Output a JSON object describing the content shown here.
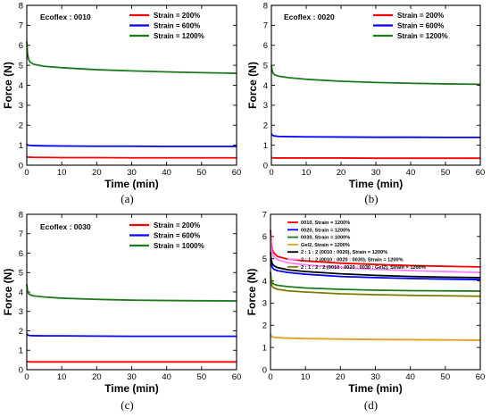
{
  "chart_data": [
    {
      "type": "line",
      "caption": "(a)",
      "title": "Ecoflex : 0010",
      "xlabel": "Time (min)",
      "ylabel": "Force (N)",
      "xlim": [
        0,
        60
      ],
      "ylim": [
        0,
        8
      ],
      "xticks": [
        0,
        10,
        20,
        30,
        40,
        50,
        60
      ],
      "yticks": [
        0,
        1,
        2,
        3,
        4,
        5,
        6,
        7,
        8
      ],
      "legend_position": "top-right",
      "series": [
        {
          "name": "Strain = 200%",
          "color": "#ff0000",
          "x": [
            0,
            0.2,
            0.5,
            1,
            2,
            5,
            10,
            20,
            30,
            40,
            50,
            60
          ],
          "y": [
            0.42,
            0.41,
            0.4,
            0.4,
            0.39,
            0.39,
            0.38,
            0.38,
            0.37,
            0.37,
            0.37,
            0.37
          ]
        },
        {
          "name": "Strain = 600%",
          "color": "#0000ff",
          "x": [
            0,
            0.2,
            0.5,
            1,
            2,
            5,
            10,
            20,
            30,
            40,
            50,
            60
          ],
          "y": [
            1.05,
            1.02,
            1.0,
            0.99,
            0.98,
            0.97,
            0.96,
            0.95,
            0.95,
            0.94,
            0.94,
            0.94
          ]
        },
        {
          "name": "Strain = 1200%",
          "color": "#1a7a1a",
          "x": [
            0,
            0.2,
            0.5,
            1,
            2,
            5,
            10,
            20,
            30,
            40,
            50,
            60
          ],
          "y": [
            6.2,
            5.6,
            5.3,
            5.15,
            5.05,
            4.95,
            4.88,
            4.78,
            4.72,
            4.67,
            4.63,
            4.6
          ]
        }
      ]
    },
    {
      "type": "line",
      "caption": "(b)",
      "title": "Ecoflex : 0020",
      "xlabel": "Time (min)",
      "ylabel": "Force (N)",
      "xlim": [
        0,
        60
      ],
      "ylim": [
        0,
        8
      ],
      "xticks": [
        0,
        10,
        20,
        30,
        40,
        50,
        60
      ],
      "yticks": [
        0,
        1,
        2,
        3,
        4,
        5,
        6,
        7,
        8
      ],
      "legend_position": "top-right",
      "series": [
        {
          "name": "Strain = 200%",
          "color": "#ff0000",
          "x": [
            0,
            0.2,
            0.5,
            1,
            2,
            5,
            10,
            20,
            30,
            40,
            50,
            60
          ],
          "y": [
            0.38,
            0.37,
            0.37,
            0.36,
            0.36,
            0.36,
            0.36,
            0.36,
            0.35,
            0.35,
            0.35,
            0.35
          ]
        },
        {
          "name": "Strain = 600%",
          "color": "#0000ff",
          "x": [
            0,
            0.2,
            0.5,
            1,
            2,
            5,
            10,
            20,
            30,
            40,
            50,
            60
          ],
          "y": [
            1.58,
            1.52,
            1.48,
            1.46,
            1.44,
            1.43,
            1.42,
            1.41,
            1.4,
            1.4,
            1.39,
            1.39
          ]
        },
        {
          "name": "Strain = 1200%",
          "color": "#1a7a1a",
          "x": [
            0,
            0.2,
            0.5,
            1,
            2,
            5,
            10,
            20,
            30,
            40,
            50,
            60
          ],
          "y": [
            5.0,
            4.75,
            4.6,
            4.52,
            4.46,
            4.38,
            4.3,
            4.2,
            4.14,
            4.1,
            4.07,
            4.05
          ]
        }
      ]
    },
    {
      "type": "line",
      "caption": "(c)",
      "title": "Ecoflex : 0030",
      "xlabel": "Time (min)",
      "ylabel": "Force (N)",
      "xlim": [
        0,
        60
      ],
      "ylim": [
        0,
        8
      ],
      "xticks": [
        0,
        10,
        20,
        30,
        40,
        50,
        60
      ],
      "yticks": [
        0,
        1,
        2,
        3,
        4,
        5,
        6,
        7,
        8
      ],
      "legend_position": "top-right",
      "series": [
        {
          "name": "Strain = 200%",
          "color": "#ff0000",
          "x": [
            0,
            0.2,
            0.5,
            1,
            2,
            5,
            10,
            20,
            30,
            40,
            50,
            60
          ],
          "y": [
            0.42,
            0.41,
            0.41,
            0.4,
            0.4,
            0.4,
            0.4,
            0.4,
            0.4,
            0.4,
            0.4,
            0.4
          ]
        },
        {
          "name": "Strain = 600%",
          "color": "#0000ff",
          "x": [
            0,
            0.2,
            0.5,
            1,
            2,
            5,
            10,
            20,
            30,
            40,
            50,
            60
          ],
          "y": [
            1.85,
            1.8,
            1.77,
            1.76,
            1.75,
            1.74,
            1.74,
            1.73,
            1.72,
            1.72,
            1.72,
            1.72
          ]
        },
        {
          "name": "Strain = 1000%",
          "color": "#1a7a1a",
          "x": [
            0,
            0.2,
            0.5,
            1,
            2,
            5,
            10,
            20,
            30,
            40,
            50,
            60
          ],
          "y": [
            4.4,
            4.05,
            3.92,
            3.85,
            3.8,
            3.74,
            3.68,
            3.62,
            3.58,
            3.56,
            3.55,
            3.54
          ]
        }
      ]
    },
    {
      "type": "line",
      "caption": "(d)",
      "title": "",
      "xlabel": "Time (min)",
      "ylabel": "Force (N)",
      "xlim": [
        0,
        60
      ],
      "ylim": [
        0,
        7
      ],
      "xticks": [
        0,
        10,
        20,
        30,
        40,
        50,
        60
      ],
      "yticks": [
        0,
        1,
        2,
        3,
        4,
        5,
        6,
        7
      ],
      "legend_position": "top-left",
      "series": [
        {
          "name": "0010, Strain = 1200%",
          "color": "#ff0000",
          "x": [
            0,
            0.2,
            0.5,
            1,
            2,
            5,
            10,
            20,
            30,
            40,
            50,
            60
          ],
          "y": [
            6.3,
            5.7,
            5.4,
            5.25,
            5.1,
            4.98,
            4.9,
            4.8,
            4.74,
            4.69,
            4.66,
            4.63
          ]
        },
        {
          "name": "0020, Strain = 1200%",
          "color": "#0000ff",
          "x": [
            0,
            0.2,
            0.5,
            1,
            2,
            5,
            10,
            20,
            30,
            40,
            50,
            60
          ],
          "y": [
            5.0,
            4.75,
            4.6,
            4.52,
            4.46,
            4.38,
            4.3,
            4.2,
            4.15,
            4.11,
            4.08,
            4.06
          ]
        },
        {
          "name": "0030, Strain = 1000%",
          "color": "#1a7a1a",
          "x": [
            0,
            0.2,
            0.5,
            1,
            2,
            5,
            10,
            20,
            30,
            40,
            50,
            60
          ],
          "y": [
            4.4,
            4.05,
            3.92,
            3.85,
            3.8,
            3.74,
            3.68,
            3.62,
            3.58,
            3.56,
            3.55,
            3.54
          ]
        },
        {
          "name": "Gel2, Strain = 1200%",
          "color": "#e0a020",
          "x": [
            0,
            0.2,
            0.5,
            1,
            2,
            5,
            10,
            20,
            30,
            40,
            50,
            60
          ],
          "y": [
            1.6,
            1.52,
            1.48,
            1.46,
            1.44,
            1.42,
            1.4,
            1.38,
            1.36,
            1.35,
            1.34,
            1.33
          ]
        },
        {
          "name": "2 : 1 : 2 (0010 : 0020), Strain = 1200%",
          "color": "#000000",
          "x": [
            0,
            0.2,
            0.5,
            1,
            2,
            5,
            10,
            20,
            30,
            40,
            50,
            60
          ],
          "y": [
            5.3,
            4.95,
            4.78,
            4.68,
            4.6,
            4.5,
            4.42,
            4.32,
            4.25,
            4.2,
            4.17,
            4.15
          ]
        },
        {
          "name": "2 : 1 : 2 (0010 : 0020 : 0030), Strain = 1200%",
          "color": "#ff80ff",
          "x": [
            0,
            0.2,
            0.5,
            1,
            2,
            5,
            10,
            20,
            30,
            40,
            50,
            60
          ],
          "y": [
            6.0,
            5.5,
            5.25,
            5.08,
            4.95,
            4.82,
            4.72,
            4.6,
            4.52,
            4.46,
            4.42,
            4.38
          ]
        },
        {
          "name": "2 : 1 : 2 : 2 (0010 : 0020 : 0030 : Gel2), Strain = 1200%",
          "color": "#7a7a00",
          "x": [
            0,
            0.2,
            0.5,
            1,
            2,
            5,
            10,
            20,
            30,
            40,
            50,
            60
          ],
          "y": [
            4.2,
            3.9,
            3.75,
            3.68,
            3.62,
            3.55,
            3.5,
            3.42,
            3.38,
            3.35,
            3.33,
            3.31
          ]
        }
      ]
    }
  ]
}
